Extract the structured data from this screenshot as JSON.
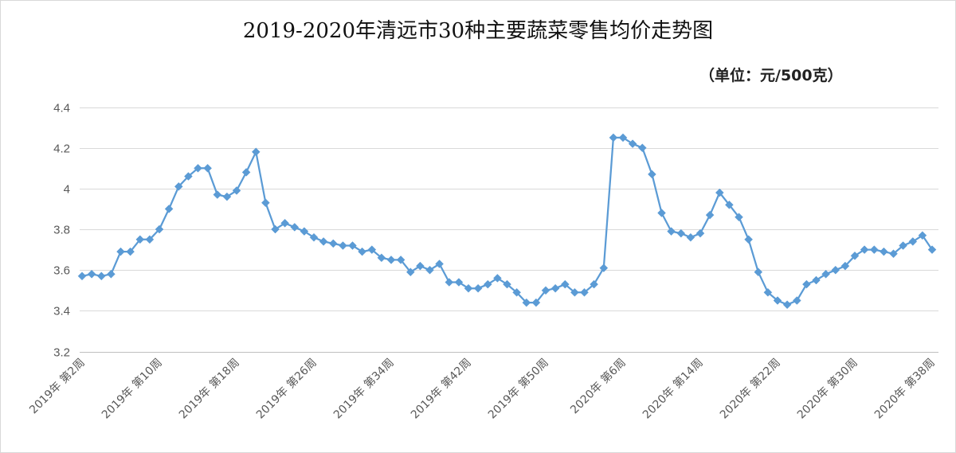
{
  "chart_data": {
    "type": "line",
    "title": "2019-2020年清远市30种主要蔬菜零售均价走势图",
    "unit_note": "（单位：元/500克）",
    "ylim": [
      3.2,
      4.4
    ],
    "y_ticks": [
      "3.2",
      "3.4",
      "3.6",
      "3.8",
      "4",
      "4.2",
      "4.4"
    ],
    "grid": "horizontal",
    "marker": "diamond",
    "line_color": "#5b9bd5",
    "x_tick_labels": [
      "2019年 第2周",
      "2019年 第10周",
      "2019年 第18周",
      "2019年 第26周",
      "2019年 第34周",
      "2019年 第42周",
      "2019年 第50周",
      "2020年 第6周",
      "2020年 第14周",
      "2020年 第22周",
      "2020年 第30周",
      "2020年 第38周"
    ],
    "x_tick_every": 8,
    "x_start_label": "2019年 第2周",
    "x_end_label": "2020年 第38周",
    "values": [
      3.57,
      3.58,
      3.57,
      3.58,
      3.69,
      3.69,
      3.75,
      3.75,
      3.8,
      3.9,
      4.01,
      4.06,
      4.1,
      4.1,
      3.97,
      3.96,
      3.99,
      4.08,
      4.18,
      3.93,
      3.8,
      3.83,
      3.81,
      3.79,
      3.76,
      3.74,
      3.73,
      3.72,
      3.72,
      3.69,
      3.7,
      3.66,
      3.65,
      3.65,
      3.59,
      3.62,
      3.6,
      3.63,
      3.54,
      3.54,
      3.51,
      3.51,
      3.53,
      3.56,
      3.53,
      3.49,
      3.44,
      3.44,
      3.5,
      3.51,
      3.53,
      3.49,
      3.49,
      3.53,
      3.61,
      4.25,
      4.25,
      4.22,
      4.2,
      4.07,
      3.88,
      3.79,
      3.78,
      3.76,
      3.78,
      3.87,
      3.98,
      3.92,
      3.86,
      3.75,
      3.59,
      3.49,
      3.45,
      3.43,
      3.45,
      3.53,
      3.55,
      3.58,
      3.6,
      3.62,
      3.67,
      3.7,
      3.7,
      3.69,
      3.68,
      3.72,
      3.74,
      3.77,
      3.7
    ]
  }
}
